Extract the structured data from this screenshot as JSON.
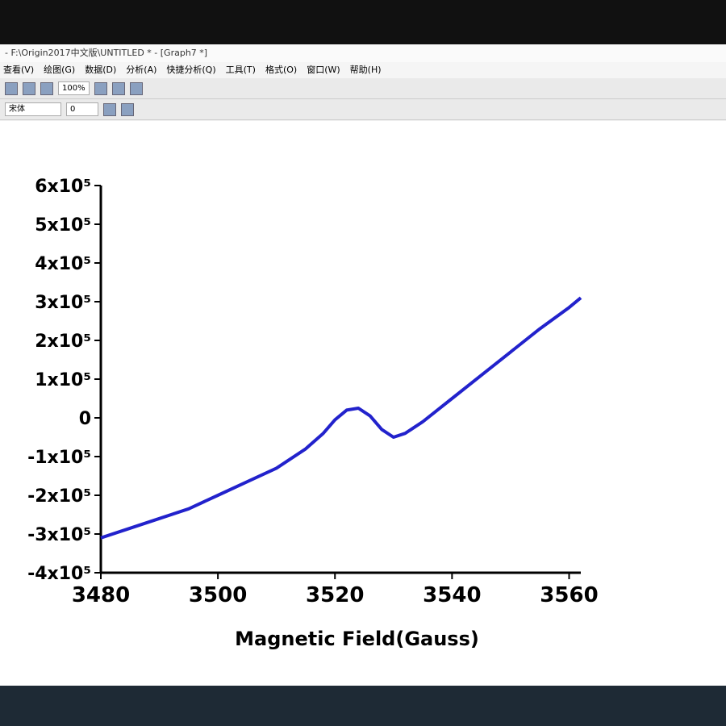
{
  "window": {
    "title": "- F:\\Origin2017中文版\\UNTITLED * - [Graph7 *]",
    "menu": [
      "查看(V)",
      "绘图(G)",
      "数据(D)",
      "分析(A)",
      "快捷分析(Q)",
      "工具(T)",
      "格式(O)",
      "窗口(W)",
      "帮助(H)"
    ],
    "zoom": "100%",
    "font": "宋体",
    "font_size": "0"
  },
  "chart_data": {
    "type": "line",
    "x_label": "Magnetic Field(Gauss)",
    "x": [
      3480,
      3485,
      3490,
      3495,
      3500,
      3505,
      3510,
      3515,
      3518,
      3520,
      3522,
      3524,
      3526,
      3528,
      3530,
      3532,
      3535,
      3540,
      3545,
      3550,
      3555,
      3560,
      3562
    ],
    "series": [
      {
        "color": "#2222cc",
        "values": [
          -310000,
          -285000,
          -260000,
          -235000,
          -200000,
          -165000,
          -130000,
          -80000,
          -40000,
          -5000,
          20000,
          25000,
          5000,
          -30000,
          -50000,
          -40000,
          -10000,
          50000,
          110000,
          170000,
          230000,
          285000,
          310000
        ]
      }
    ],
    "xlim": [
      3480,
      3562
    ],
    "ylim": [
      -400000,
      600000
    ],
    "xticks": [
      3480,
      3500,
      3520,
      3540,
      3560
    ],
    "yticks": [
      {
        "value": -400000,
        "label": "-4x10⁵"
      },
      {
        "value": -300000,
        "label": "-3x10⁵"
      },
      {
        "value": -200000,
        "label": "-2x10⁵"
      },
      {
        "value": -100000,
        "label": "-1x10⁵"
      },
      0,
      {
        "value": 100000,
        "label": "1x10⁵"
      },
      {
        "value": 200000,
        "label": "2x10⁵"
      },
      {
        "value": 300000,
        "label": "3x10⁵"
      },
      {
        "value": 400000,
        "label": "4x10⁵"
      },
      {
        "value": 500000,
        "label": "5x10⁵"
      },
      {
        "value": 600000,
        "label": "6x10⁵"
      }
    ]
  }
}
